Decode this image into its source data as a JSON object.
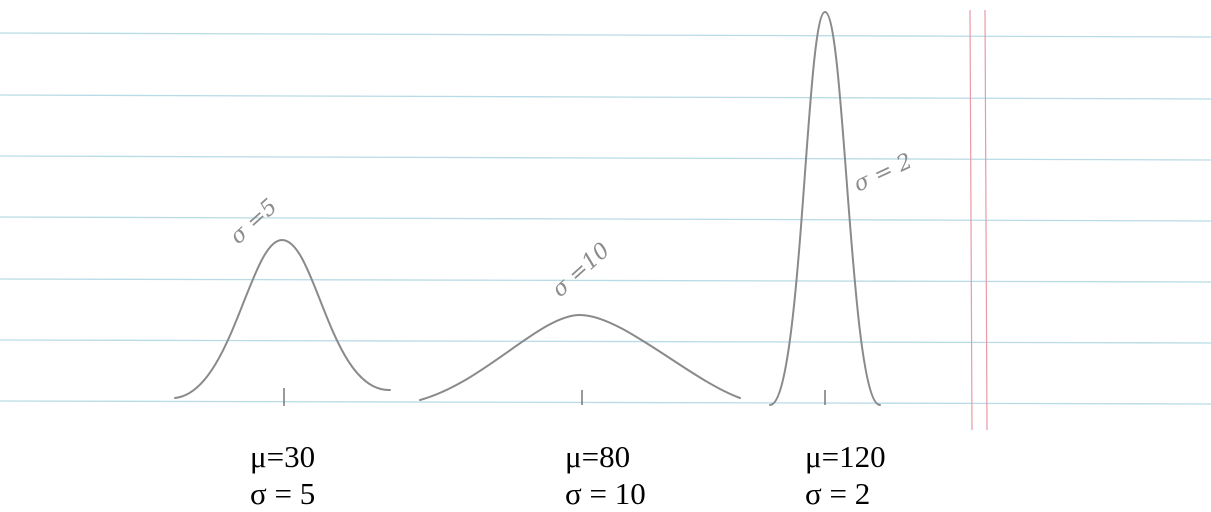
{
  "curves": [
    {
      "annotation": "σ =5",
      "mean_label": "μ=30",
      "sigma_label": "σ = 5"
    },
    {
      "annotation": "σ =10",
      "mean_label": "μ=80",
      "sigma_label": "σ = 10"
    },
    {
      "annotation": "σ = 2",
      "mean_label": "μ=120",
      "sigma_label": "σ = 2"
    }
  ]
}
